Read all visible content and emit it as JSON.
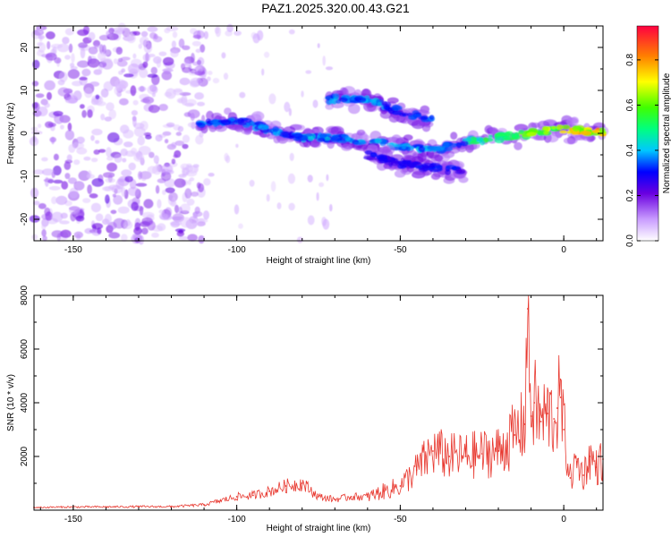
{
  "title": "PAZ1.2025.320.00.43.G21",
  "colors": {
    "snr_line": "#e8382f",
    "frame": "#000000"
  },
  "chart_data": [
    {
      "type": "heatmap",
      "name": "spectrogram",
      "xlabel": "Height of straight line (km)",
      "ylabel": "Frequency (Hz)",
      "xlim": [
        -162,
        12
      ],
      "ylim": [
        -25,
        25
      ],
      "xticks": [
        "-150",
        "-100",
        "-50",
        "0"
      ],
      "yticks": [
        "-20",
        "-10",
        "0",
        "10",
        "20"
      ],
      "colorbar": {
        "label": "Normalized spectral amplitude",
        "range": [
          0,
          0.95
        ],
        "ticks": [
          "0.0",
          "0.2",
          "0.4",
          "0.6",
          "0.8"
        ]
      },
      "features": [
        {
          "description": "noise region",
          "x_range": [
            -162,
            -110
          ],
          "y_range": [
            -25,
            25
          ]
        },
        {
          "description": "main track",
          "points": [
            [
              -112,
              2
            ],
            [
              -100,
              3
            ],
            [
              -90,
              1
            ],
            [
              -80,
              -1
            ],
            [
              -70,
              -1
            ],
            [
              -60,
              -2
            ],
            [
              -50,
              -3
            ],
            [
              -40,
              -4
            ],
            [
              -30,
              -2
            ],
            [
              -20,
              -1
            ],
            [
              -10,
              0
            ],
            [
              0,
              1
            ],
            [
              12,
              0
            ]
          ]
        },
        {
          "description": "upper branch",
          "points": [
            [
              -72,
              8
            ],
            [
              -60,
              8
            ],
            [
              -50,
              5
            ],
            [
              -40,
              3
            ]
          ]
        },
        {
          "description": "lower branch",
          "points": [
            [
              -60,
              -5
            ],
            [
              -50,
              -7
            ],
            [
              -40,
              -8
            ],
            [
              -30,
              -9
            ]
          ]
        }
      ]
    },
    {
      "type": "line",
      "name": "snr",
      "xlabel": "Height of straight line (km)",
      "ylabel": "SNR (10 * v/v)",
      "xlim": [
        -162,
        12
      ],
      "ylim": [
        0,
        8000
      ],
      "xticks": [
        "-150",
        "-100",
        "-50",
        "0"
      ],
      "yticks": [
        "2000",
        "4000",
        "6000",
        "8000"
      ],
      "x": [
        -162,
        -150,
        -140,
        -130,
        -120,
        -110,
        -105,
        -100,
        -95,
        -90,
        -85,
        -80,
        -75,
        -70,
        -65,
        -60,
        -55,
        -50,
        -45,
        -40,
        -35,
        -30,
        -25,
        -20,
        -15,
        -12,
        -11,
        -10,
        -9,
        -7,
        -5,
        -3,
        -2,
        -1,
        0,
        2,
        4,
        6,
        8,
        10,
        12
      ],
      "values": [
        100,
        120,
        120,
        130,
        130,
        200,
        350,
        500,
        550,
        700,
        900,
        1000,
        500,
        400,
        500,
        500,
        700,
        900,
        1500,
        2200,
        2000,
        2000,
        2100,
        2200,
        2800,
        3200,
        7500,
        3500,
        4000,
        3300,
        3600,
        3400,
        3800,
        4200,
        3000,
        1200,
        1800,
        1300,
        2000,
        1600,
        1900
      ]
    }
  ]
}
